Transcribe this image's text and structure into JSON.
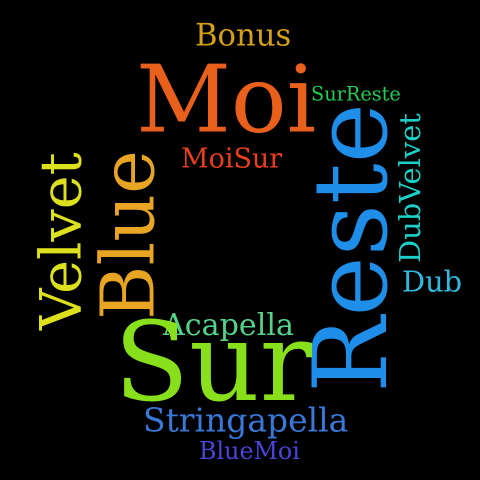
{
  "words": [
    {
      "id": "bonus",
      "text": "Bonus",
      "color": "#d4a017",
      "orientation": "horizontal"
    },
    {
      "id": "moi",
      "text": "Moi",
      "color": "#e8601c",
      "orientation": "horizontal"
    },
    {
      "id": "surreste",
      "text": "SurReste",
      "color": "#22cc55",
      "orientation": "horizontal"
    },
    {
      "id": "moisur",
      "text": "MoiSur",
      "color": "#e8401c",
      "orientation": "horizontal"
    },
    {
      "id": "velvet",
      "text": "Velvet",
      "color": "#dde01c",
      "orientation": "vertical"
    },
    {
      "id": "blue",
      "text": "Blue",
      "color": "#e8a524",
      "orientation": "vertical"
    },
    {
      "id": "reste",
      "text": "Reste",
      "color": "#1e8ee8",
      "orientation": "vertical"
    },
    {
      "id": "dubvelvet",
      "text": "DubVelvet",
      "color": "#1ccfc8",
      "orientation": "vertical"
    },
    {
      "id": "dub",
      "text": "Dub",
      "color": "#30b8e0",
      "orientation": "horizontal"
    },
    {
      "id": "acapella",
      "text": "Acapella",
      "color": "#55d28a",
      "orientation": "horizontal"
    },
    {
      "id": "sur",
      "text": "Sur",
      "color": "#88e01c",
      "orientation": "horizontal"
    },
    {
      "id": "stringapella",
      "text": "Stringapella",
      "color": "#3a78d8",
      "orientation": "horizontal"
    },
    {
      "id": "bluemoi",
      "text": "BlueMoi",
      "color": "#4a44d8",
      "orientation": "horizontal"
    }
  ]
}
